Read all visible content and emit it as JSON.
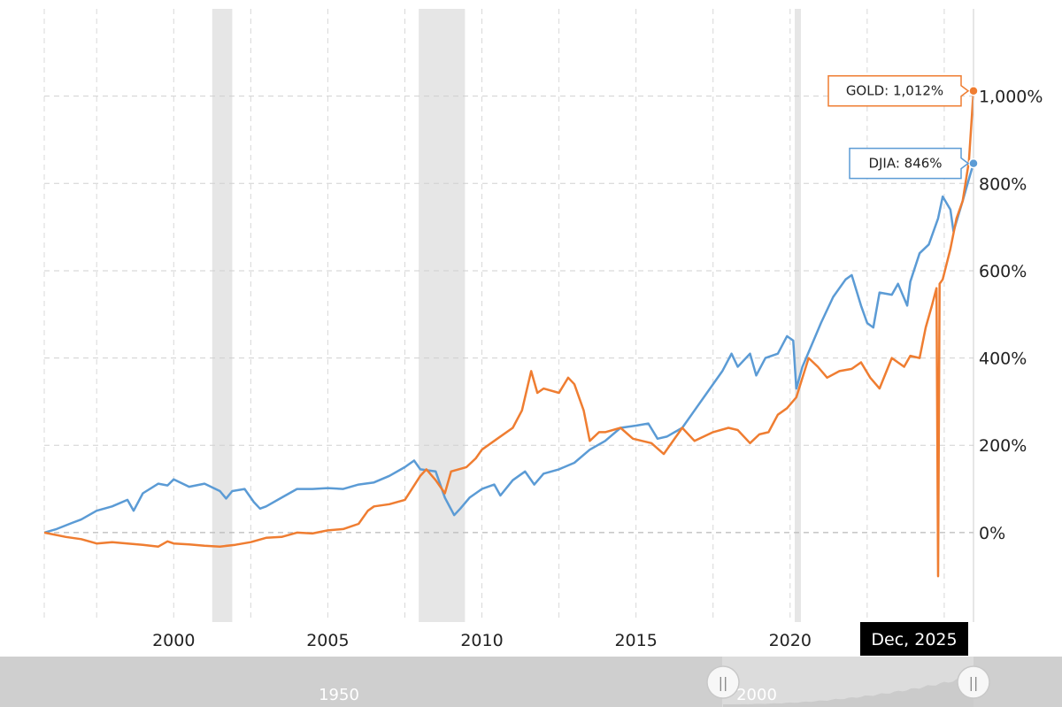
{
  "chart_data": {
    "type": "line",
    "x_ticks": [
      "2000",
      "2005",
      "2010",
      "2015",
      "2020"
    ],
    "y_ticks": [
      "0%",
      "200%",
      "400%",
      "600%",
      "800%",
      "1,000%"
    ],
    "y_tick_values": [
      0,
      200,
      400,
      600,
      800,
      1000
    ],
    "xlim": [
      1995.8,
      2025.95
    ],
    "ylim": [
      -205,
      1200
    ],
    "grid": true,
    "recessions": [
      [
        2001.25,
        2001.9
      ],
      [
        2007.95,
        2009.45
      ],
      [
        2020.15,
        2020.35
      ]
    ],
    "series": [
      {
        "name": "GOLD",
        "color": "#ef7d31",
        "points": [
          [
            1995.8,
            0
          ],
          [
            1996.5,
            -10
          ],
          [
            1997.0,
            -15
          ],
          [
            1997.5,
            -25
          ],
          [
            1998.0,
            -22
          ],
          [
            1998.5,
            -25
          ],
          [
            1999.0,
            -28
          ],
          [
            1999.5,
            -32
          ],
          [
            1999.8,
            -20
          ],
          [
            2000.0,
            -25
          ],
          [
            2000.5,
            -27
          ],
          [
            2001.0,
            -30
          ],
          [
            2001.5,
            -32
          ],
          [
            2002.0,
            -28
          ],
          [
            2002.5,
            -22
          ],
          [
            2003.0,
            -12
          ],
          [
            2003.5,
            -10
          ],
          [
            2004.0,
            0
          ],
          [
            2004.5,
            -2
          ],
          [
            2005.0,
            5
          ],
          [
            2005.5,
            8
          ],
          [
            2006.0,
            20
          ],
          [
            2006.3,
            50
          ],
          [
            2006.5,
            60
          ],
          [
            2007.0,
            65
          ],
          [
            2007.5,
            75
          ],
          [
            2008.0,
            130
          ],
          [
            2008.2,
            145
          ],
          [
            2008.5,
            120
          ],
          [
            2008.8,
            90
          ],
          [
            2009.0,
            140
          ],
          [
            2009.5,
            150
          ],
          [
            2009.8,
            170
          ],
          [
            2010.0,
            190
          ],
          [
            2010.5,
            215
          ],
          [
            2011.0,
            240
          ],
          [
            2011.3,
            280
          ],
          [
            2011.6,
            370
          ],
          [
            2011.8,
            320
          ],
          [
            2012.0,
            330
          ],
          [
            2012.5,
            320
          ],
          [
            2012.8,
            355
          ],
          [
            2013.0,
            340
          ],
          [
            2013.3,
            280
          ],
          [
            2013.5,
            210
          ],
          [
            2013.8,
            230
          ],
          [
            2014.0,
            230
          ],
          [
            2014.5,
            240
          ],
          [
            2014.9,
            215
          ],
          [
            2015.5,
            205
          ],
          [
            2015.9,
            180
          ],
          [
            2016.5,
            240
          ],
          [
            2016.9,
            210
          ],
          [
            2017.5,
            230
          ],
          [
            2018.0,
            240
          ],
          [
            2018.3,
            235
          ],
          [
            2018.7,
            205
          ],
          [
            2019.0,
            225
          ],
          [
            2019.3,
            230
          ],
          [
            2019.6,
            270
          ],
          [
            2019.9,
            285
          ],
          [
            2020.2,
            310
          ],
          [
            2020.6,
            400
          ],
          [
            2020.9,
            380
          ],
          [
            2021.2,
            355
          ],
          [
            2021.6,
            370
          ],
          [
            2022.0,
            375
          ],
          [
            2022.3,
            390
          ],
          [
            2022.6,
            355
          ],
          [
            2022.9,
            330
          ],
          [
            2023.3,
            400
          ],
          [
            2023.7,
            380
          ],
          [
            2023.9,
            405
          ],
          [
            2024.2,
            400
          ],
          [
            2024.4,
            470
          ],
          [
            2024.6,
            520
          ],
          [
            2024.75,
            560
          ],
          [
            2024.8,
            -100
          ],
          [
            2024.85,
            570
          ],
          [
            2024.95,
            580
          ],
          [
            2025.2,
            650
          ],
          [
            2025.4,
            720
          ],
          [
            2025.6,
            760
          ],
          [
            2025.8,
            850
          ],
          [
            2025.95,
            1012
          ]
        ]
      },
      {
        "name": "DJIA",
        "color": "#5b9bd5",
        "points": [
          [
            1995.8,
            0
          ],
          [
            1996.2,
            8
          ],
          [
            1996.7,
            22
          ],
          [
            1997.0,
            30
          ],
          [
            1997.5,
            50
          ],
          [
            1998.0,
            60
          ],
          [
            1998.5,
            75
          ],
          [
            1998.7,
            50
          ],
          [
            1999.0,
            90
          ],
          [
            1999.5,
            112
          ],
          [
            1999.8,
            108
          ],
          [
            2000.0,
            122
          ],
          [
            2000.5,
            105
          ],
          [
            2001.0,
            112
          ],
          [
            2001.5,
            95
          ],
          [
            2001.7,
            78
          ],
          [
            2001.9,
            95
          ],
          [
            2002.3,
            100
          ],
          [
            2002.6,
            70
          ],
          [
            2002.8,
            55
          ],
          [
            2003.0,
            60
          ],
          [
            2003.5,
            80
          ],
          [
            2004.0,
            100
          ],
          [
            2004.5,
            100
          ],
          [
            2005.0,
            102
          ],
          [
            2005.5,
            100
          ],
          [
            2006.0,
            110
          ],
          [
            2006.5,
            115
          ],
          [
            2007.0,
            130
          ],
          [
            2007.5,
            150
          ],
          [
            2007.8,
            165
          ],
          [
            2008.0,
            145
          ],
          [
            2008.5,
            140
          ],
          [
            2008.8,
            80
          ],
          [
            2009.1,
            40
          ],
          [
            2009.3,
            55
          ],
          [
            2009.6,
            80
          ],
          [
            2010.0,
            100
          ],
          [
            2010.4,
            110
          ],
          [
            2010.6,
            85
          ],
          [
            2011.0,
            120
          ],
          [
            2011.4,
            140
          ],
          [
            2011.7,
            110
          ],
          [
            2012.0,
            135
          ],
          [
            2012.5,
            145
          ],
          [
            2013.0,
            160
          ],
          [
            2013.5,
            190
          ],
          [
            2014.0,
            210
          ],
          [
            2014.5,
            240
          ],
          [
            2015.0,
            245
          ],
          [
            2015.4,
            250
          ],
          [
            2015.7,
            215
          ],
          [
            2016.0,
            220
          ],
          [
            2016.5,
            240
          ],
          [
            2016.9,
            280
          ],
          [
            2017.3,
            320
          ],
          [
            2017.8,
            370
          ],
          [
            2018.1,
            410
          ],
          [
            2018.3,
            380
          ],
          [
            2018.7,
            410
          ],
          [
            2018.9,
            360
          ],
          [
            2019.2,
            400
          ],
          [
            2019.6,
            410
          ],
          [
            2019.9,
            450
          ],
          [
            2020.1,
            440
          ],
          [
            2020.2,
            330
          ],
          [
            2020.4,
            380
          ],
          [
            2020.7,
            430
          ],
          [
            2021.0,
            480
          ],
          [
            2021.4,
            540
          ],
          [
            2021.8,
            580
          ],
          [
            2022.0,
            590
          ],
          [
            2022.3,
            520
          ],
          [
            2022.5,
            480
          ],
          [
            2022.7,
            470
          ],
          [
            2022.9,
            550
          ],
          [
            2023.3,
            545
          ],
          [
            2023.5,
            570
          ],
          [
            2023.8,
            520
          ],
          [
            2023.9,
            575
          ],
          [
            2024.2,
            640
          ],
          [
            2024.5,
            660
          ],
          [
            2024.8,
            720
          ],
          [
            2024.95,
            770
          ],
          [
            2025.2,
            740
          ],
          [
            2025.3,
            690
          ],
          [
            2025.6,
            760
          ],
          [
            2025.8,
            810
          ],
          [
            2025.95,
            846
          ]
        ]
      }
    ]
  },
  "tooltips": {
    "gold": {
      "text": "GOLD: 1,012%",
      "value": 1012
    },
    "djia": {
      "text": "DJIA: 846%",
      "value": 846
    }
  },
  "crosshair_date": "Dec, 2025",
  "navigator": {
    "labels": [
      "1950",
      "2000"
    ],
    "handle_glyph": "||",
    "range": [
      0.68,
      0.92
    ]
  }
}
